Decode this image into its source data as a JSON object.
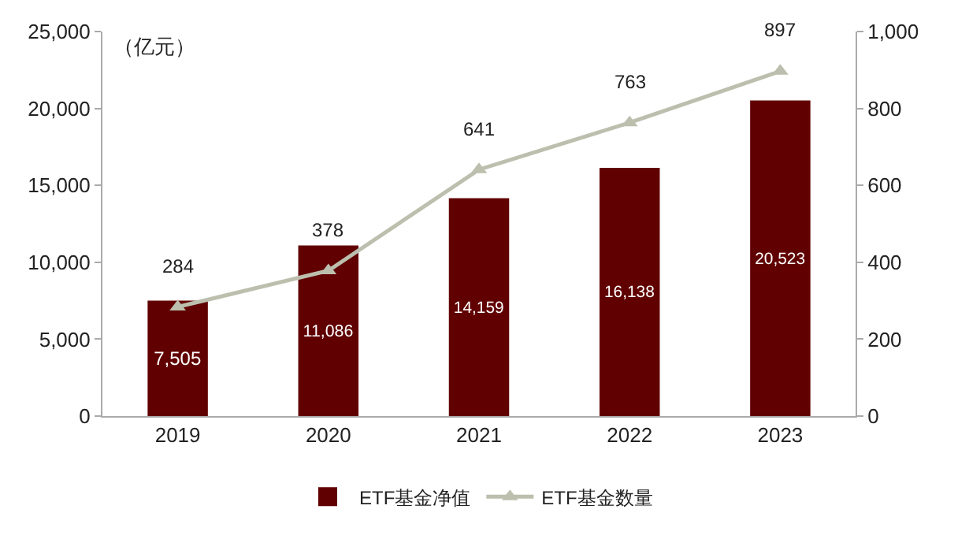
{
  "chart_data": {
    "type": "bar",
    "ylabel": "（亿元）",
    "categories": [
      "2019",
      "2020",
      "2021",
      "2022",
      "2023"
    ],
    "series": [
      {
        "name": "ETF基金净值",
        "color": "#600000",
        "values": [
          7505,
          11086,
          14159,
          16138,
          20523
        ],
        "value_labels": [
          "7,505",
          "11,086",
          "14,159",
          "16,138",
          "20,523"
        ]
      },
      {
        "name": "ETF基金数量",
        "type": "line",
        "axis": "y2",
        "color": "#bdbfae",
        "marker": "triangle",
        "values": [
          284,
          378,
          641,
          763,
          897
        ],
        "value_labels": [
          "284",
          "378",
          "641",
          "763",
          "897"
        ]
      }
    ],
    "ylim": [
      0,
      25000
    ],
    "yticks": [
      {
        "value": 0,
        "label": "0"
      },
      {
        "value": 5000,
        "label": "5,000"
      },
      {
        "value": 10000,
        "label": "10,000"
      },
      {
        "value": 15000,
        "label": "15,000"
      },
      {
        "value": 20000,
        "label": "20,000"
      },
      {
        "value": 25000,
        "label": "25,000"
      }
    ],
    "y2lim": [
      0,
      1000
    ],
    "y2ticks": [
      0,
      200,
      400,
      600,
      800,
      {
        "value": 1000,
        "label": "1,000"
      }
    ],
    "grid": false,
    "legend": "bottom"
  }
}
